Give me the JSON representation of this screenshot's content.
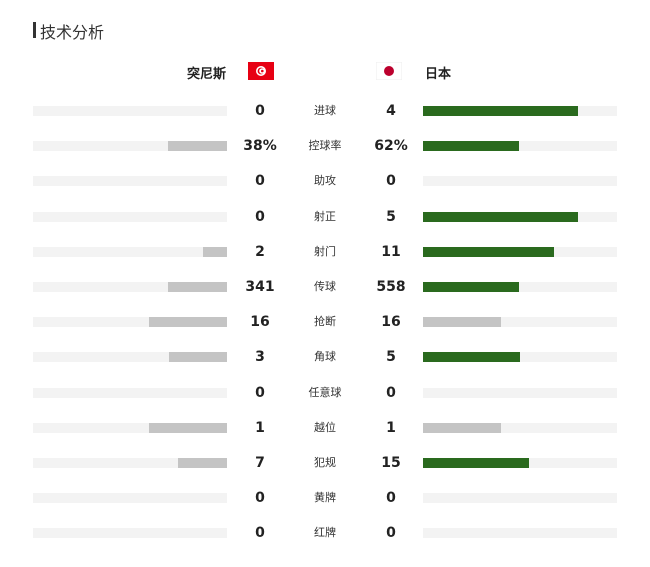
{
  "header": {
    "title": "技术分析"
  },
  "teams": {
    "home": "突尼斯",
    "away": "日本"
  },
  "colors": {
    "leader": "#2a6a1e",
    "other": "#c4c4c4",
    "track": "#f3f3f3"
  },
  "stats": [
    {
      "name": "进球",
      "home": 0,
      "away": 4
    },
    {
      "name": "控球率",
      "home": 38,
      "away": 62,
      "home_label": "38%",
      "away_label": "62%"
    },
    {
      "name": "助攻",
      "home": 0,
      "away": 0
    },
    {
      "name": "射正",
      "home": 0,
      "away": 5
    },
    {
      "name": "射门",
      "home": 2,
      "away": 11
    },
    {
      "name": "传球",
      "home": 341,
      "away": 558
    },
    {
      "name": "抢断",
      "home": 16,
      "away": 16
    },
    {
      "name": "角球",
      "home": 3,
      "away": 5
    },
    {
      "name": "任意球",
      "home": 0,
      "away": 0
    },
    {
      "name": "越位",
      "home": 1,
      "away": 1
    },
    {
      "name": "犯规",
      "home": 7,
      "away": 15
    },
    {
      "name": "黄牌",
      "home": 0,
      "away": 0
    },
    {
      "name": "红牌",
      "home": 0,
      "away": 0
    }
  ]
}
